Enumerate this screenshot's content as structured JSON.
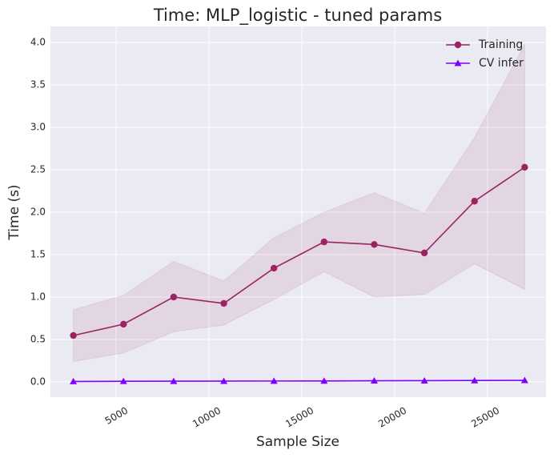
{
  "chart_data": {
    "type": "line",
    "title": "Time: MLP_logistic - tuned params",
    "x_label": "Sample Size",
    "y_label": "Time (s)",
    "x": [
      2700,
      5400,
      8100,
      10800,
      13500,
      16200,
      18900,
      21600,
      24300,
      27000
    ],
    "series": [
      {
        "name": "Training",
        "color": "#9b2460",
        "marker": "circle",
        "values": [
          0.547,
          0.68,
          1.0,
          0.925,
          1.34,
          1.65,
          1.62,
          1.52,
          2.13,
          2.53
        ],
        "upper": [
          0.85,
          1.02,
          1.42,
          1.19,
          1.7,
          2.0,
          2.23,
          1.99,
          2.88,
          3.98
        ],
        "lower": [
          0.24,
          0.34,
          0.59,
          0.67,
          0.97,
          1.3,
          1.0,
          1.03,
          1.39,
          1.09
        ]
      },
      {
        "name": "CV infer",
        "color": "#7f00ff",
        "marker": "triangle",
        "values": [
          0.005,
          0.007,
          0.008,
          0.009,
          0.01,
          0.011,
          0.013,
          0.014,
          0.016,
          0.018
        ]
      }
    ],
    "xlim": [
      1466,
      28147
    ],
    "xticks": [
      5000,
      10000,
      15000,
      20000,
      25000
    ],
    "ylim": [
      -0.18,
      4.19
    ],
    "yticks": [
      {
        "value": 0,
        "label": "0.0"
      },
      {
        "value": 0.5,
        "label": "0.5"
      },
      {
        "value": 1,
        "label": "1.0"
      },
      {
        "value": 1.5,
        "label": "1.5"
      },
      {
        "value": 2,
        "label": "2.0"
      },
      {
        "value": 2.5,
        "label": "2.5"
      },
      {
        "value": 3,
        "label": "3.0"
      },
      {
        "value": 3.5,
        "label": "3.5"
      },
      {
        "value": 4,
        "label": "4.0"
      }
    ],
    "grid": true,
    "legend": "upper right"
  }
}
